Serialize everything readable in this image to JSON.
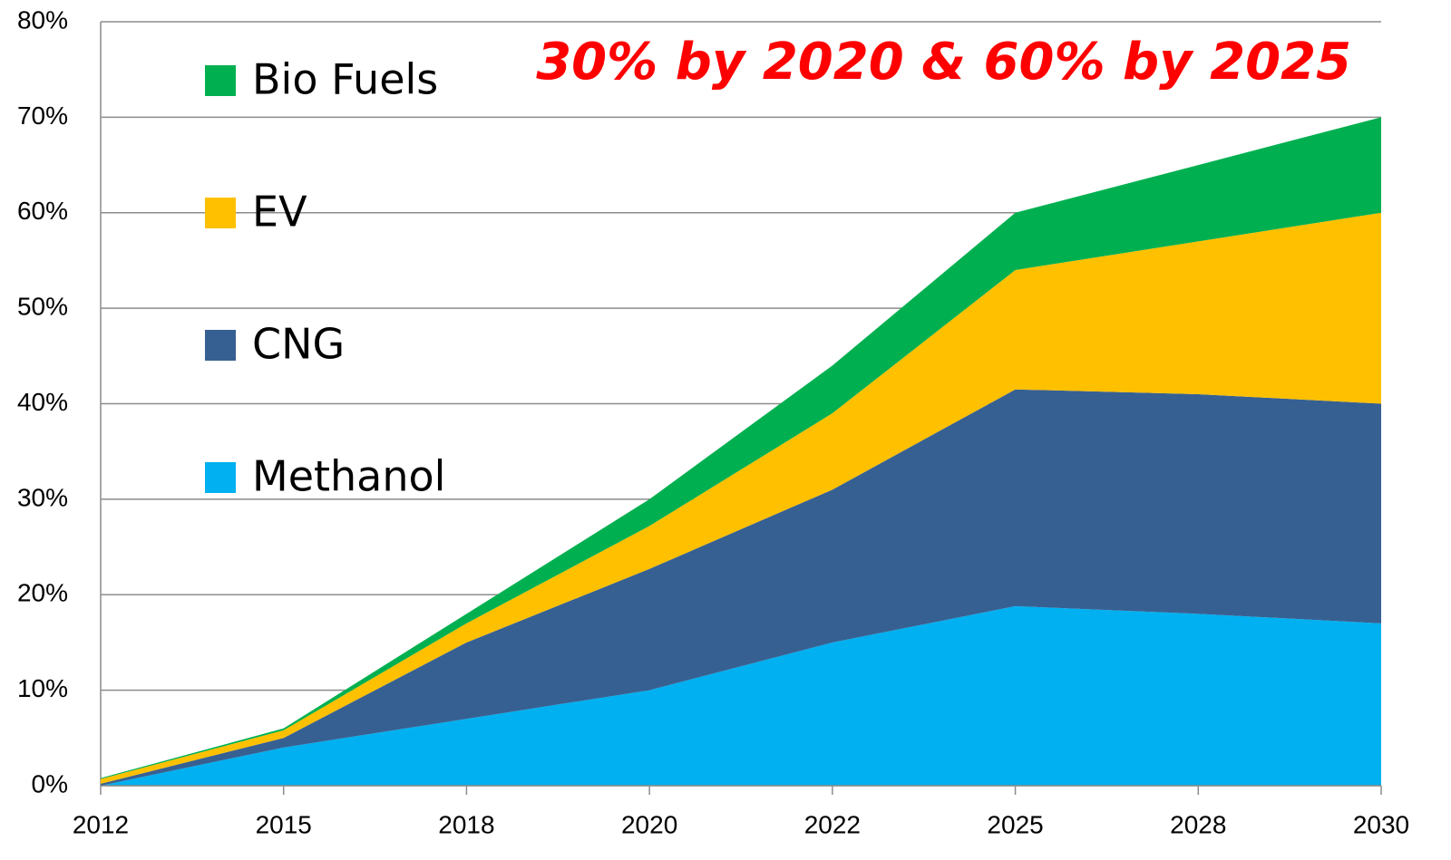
{
  "chart_data": {
    "type": "stacked_area",
    "annotation": "30% by 2020 & 60% by 2025",
    "categories": [
      "2012",
      "2015",
      "2018",
      "2020",
      "2022",
      "2025",
      "2028",
      "2030"
    ],
    "series": [
      {
        "name": "Methanol",
        "color": "#00b0f0",
        "values": [
          0,
          4,
          7,
          10,
          15,
          18.8,
          18,
          17
        ]
      },
      {
        "name": "CNG",
        "color": "#376092",
        "values": [
          0.2,
          1,
          8,
          12.7,
          16,
          22.7,
          23,
          23
        ]
      },
      {
        "name": "EV",
        "color": "#ffc000",
        "values": [
          0.5,
          0.8,
          2,
          4.5,
          8,
          12.5,
          16,
          20
        ]
      },
      {
        "name": "Bio Fuels",
        "color": "#00b050",
        "values": [
          0.1,
          0.2,
          1,
          2.8,
          5,
          6,
          8,
          10
        ]
      }
    ],
    "ylim": [
      0,
      80
    ],
    "yticks": [
      {
        "value": 0,
        "label": "0%"
      },
      {
        "value": 10,
        "label": "10%"
      },
      {
        "value": 20,
        "label": "20%"
      },
      {
        "value": 30,
        "label": "30%"
      },
      {
        "value": 40,
        "label": "40%"
      },
      {
        "value": 50,
        "label": "50%"
      },
      {
        "value": 60,
        "label": "60%"
      },
      {
        "value": 70,
        "label": "70%"
      },
      {
        "value": 80,
        "label": "80%"
      }
    ],
    "grid": true
  }
}
